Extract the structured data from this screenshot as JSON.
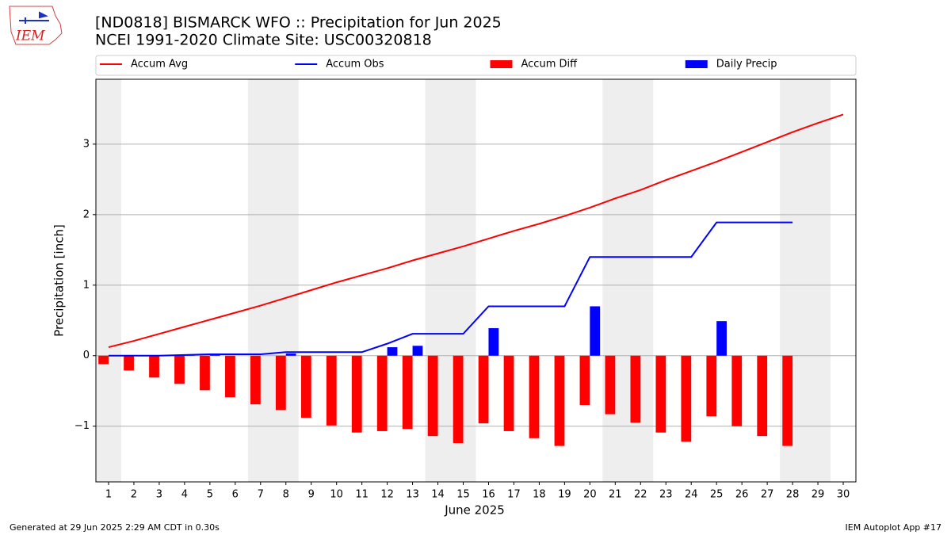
{
  "chart_data": {
    "type": "line",
    "title": "[ND0818] BISMARCK WFO :: Precipitation for Jun 2025",
    "subtitle": "NCEI 1991-2020 Climate Site: USC00320818",
    "xlabel": "June 2025",
    "ylabel": "Precipitation [inch]",
    "footer_left": "Generated at 29 Jun 2025 2:29 AM CDT in 0.30s",
    "footer_right": "IEM Autoplot App #17",
    "logo_text": "IEM",
    "legend": "top",
    "grid": true,
    "shade_color": "#eeeeee",
    "shaded_ranges": [
      [
        0.5,
        1.5
      ],
      [
        6.5,
        8.5
      ],
      [
        13.5,
        15.5
      ],
      [
        20.5,
        22.5
      ],
      [
        27.5,
        29.5
      ]
    ],
    "x": [
      1,
      2,
      3,
      4,
      5,
      6,
      7,
      8,
      9,
      10,
      11,
      12,
      13,
      14,
      15,
      16,
      17,
      18,
      19,
      20,
      21,
      22,
      23,
      24,
      25,
      26,
      27,
      28,
      29,
      30
    ],
    "xlim": [
      0.5,
      30.5
    ],
    "xticks": [
      1,
      2,
      3,
      4,
      5,
      6,
      7,
      8,
      9,
      10,
      11,
      12,
      13,
      14,
      15,
      16,
      17,
      18,
      19,
      20,
      21,
      22,
      23,
      24,
      25,
      26,
      27,
      28,
      29,
      30
    ],
    "ylim": [
      -1.79,
      3.92
    ],
    "yticks": [
      {
        "value": -1,
        "label": "−1"
      },
      0,
      1,
      2,
      3
    ],
    "series": [
      {
        "name": "Accum Avg",
        "type": "line",
        "color": "#ff0000",
        "values": [
          0.12,
          0.21,
          0.31,
          0.41,
          0.51,
          0.61,
          0.71,
          0.82,
          0.93,
          1.04,
          1.14,
          1.24,
          1.35,
          1.45,
          1.55,
          1.66,
          1.77,
          1.87,
          1.98,
          2.1,
          2.23,
          2.35,
          2.49,
          2.62,
          2.75,
          2.89,
          3.03,
          3.17,
          3.3,
          3.42
        ]
      },
      {
        "name": "Accum Obs",
        "type": "line",
        "color": "#0000ff",
        "values": [
          0,
          0,
          0,
          0.01,
          0.02,
          0.02,
          0.02,
          0.05,
          0.05,
          0.05,
          0.05,
          0.17,
          0.31,
          0.31,
          0.31,
          0.7,
          0.7,
          0.7,
          0.7,
          1.4,
          1.4,
          1.4,
          1.4,
          1.4,
          1.89,
          1.89,
          1.89,
          1.89,
          null,
          null
        ]
      },
      {
        "name": "Accum Diff",
        "type": "bar",
        "side": "left",
        "color": "#ff0000",
        "values": [
          -0.12,
          -0.21,
          -0.31,
          -0.4,
          -0.49,
          -0.59,
          -0.69,
          -0.77,
          -0.88,
          -0.99,
          -1.09,
          -1.07,
          -1.04,
          -1.14,
          -1.24,
          -0.96,
          -1.07,
          -1.17,
          -1.28,
          -0.7,
          -0.83,
          -0.95,
          -1.09,
          -1.22,
          -0.86,
          -1.0,
          -1.14,
          -1.28,
          null,
          null
        ]
      },
      {
        "name": "Daily Precip",
        "type": "bar",
        "side": "right",
        "color": "#0000ff",
        "values": [
          0,
          0,
          0,
          0.01,
          0.01,
          0,
          0,
          0.03,
          0,
          0,
          0,
          0.12,
          0.14,
          0,
          0,
          0.39,
          0,
          0,
          0,
          0.7,
          0,
          0,
          0,
          0,
          0.49,
          0,
          0,
          0,
          null,
          null
        ]
      }
    ]
  }
}
